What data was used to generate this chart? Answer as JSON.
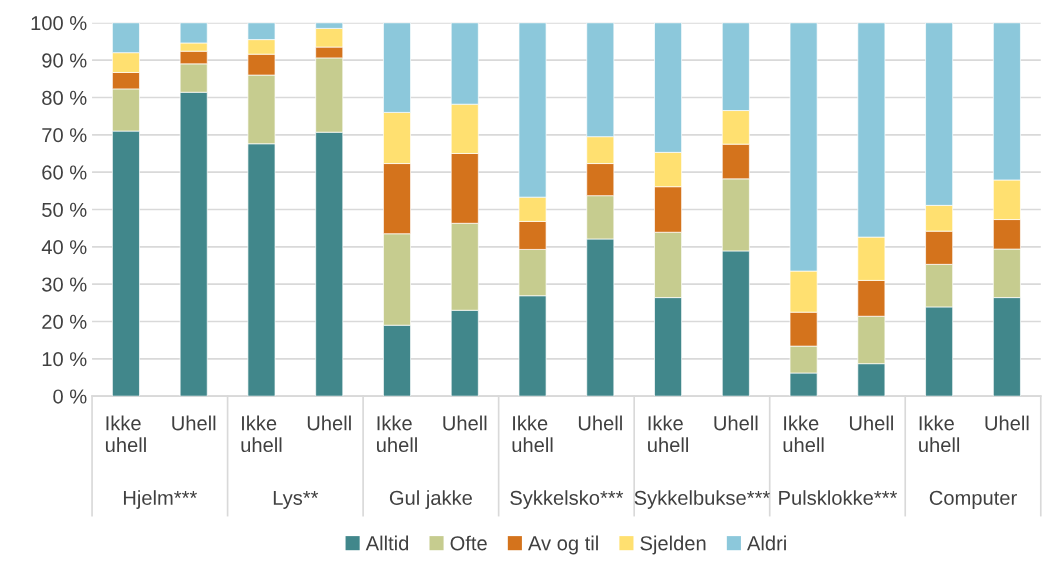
{
  "chart_data": {
    "type": "bar",
    "stacked": true,
    "categories": [
      "Ikke uhell",
      "Uhell",
      "Ikke uhell",
      "Uhell",
      "Ikke uhell",
      "Uhell",
      "Ikke uhell",
      "Uhell",
      "Ikke uhell",
      "Uhell",
      "Ikke uhell",
      "Uhell",
      "Ikke uhell",
      "Uhell"
    ],
    "annotations": [
      "Hjelm***",
      "Lys**",
      "Gul jakke",
      "Sykkelsko***",
      "Sykkelbukse***",
      "Pulsklokke***",
      "Computer"
    ],
    "series": [
      {
        "name": "Alltid",
        "color": "#41878b",
        "values": [
          71,
          81.4,
          67.6,
          70.7,
          19,
          23,
          26.9,
          42.1,
          26.4,
          38.9,
          6.2,
          8.7,
          23.9,
          26.4
        ]
      },
      {
        "name": "Ofte",
        "color": "#c6cc8f",
        "values": [
          11.3,
          7.6,
          18.4,
          19.9,
          24.5,
          23.3,
          12.4,
          11.6,
          17.5,
          19.3,
          7.2,
          12.7,
          11.4,
          13
        ]
      },
      {
        "name": "Av og til",
        "color": "#d4731c",
        "values": [
          4.4,
          3.4,
          5.6,
          2.9,
          18.8,
          18.7,
          7.5,
          8.6,
          12.2,
          9.3,
          9.1,
          9.6,
          8.9,
          7.9
        ]
      },
      {
        "name": "Sjelden",
        "color": "#ffe070",
        "values": [
          5.3,
          2.2,
          3.9,
          5,
          13.7,
          13.2,
          6.5,
          7.2,
          9.2,
          9,
          11,
          11.6,
          6.9,
          10.6
        ]
      },
      {
        "name": "Aldri",
        "color": "#8cc8db",
        "values": [
          8,
          5.4,
          4.5,
          1.5,
          24,
          21.8,
          46.7,
          30.5,
          34.7,
          23.5,
          66.5,
          57.4,
          48.9,
          42.1
        ]
      }
    ],
    "ylim": [
      0,
      100
    ],
    "yticks": [
      {
        "value": 0,
        "label": "0 %"
      },
      {
        "value": 10,
        "label": "10 %"
      },
      {
        "value": 20,
        "label": "20 %"
      },
      {
        "value": 30,
        "label": "30 %"
      },
      {
        "value": 40,
        "label": "40 %"
      },
      {
        "value": 50,
        "label": "50 %"
      },
      {
        "value": 60,
        "label": "60 %"
      },
      {
        "value": 70,
        "label": "70 %"
      },
      {
        "value": 80,
        "label": "80 %"
      },
      {
        "value": 90,
        "label": "90 %"
      },
      {
        "value": 100,
        "label": "100 %"
      }
    ],
    "grid": "y",
    "legend": "bottom"
  }
}
